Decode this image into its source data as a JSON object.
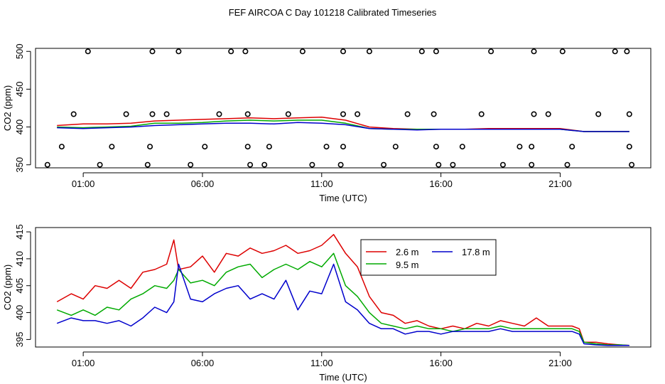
{
  "figure_title": "FEF AIRCOA C  Day 101218  Calibrated Timeseries",
  "colors": {
    "s1": "#dd0000",
    "s2": "#00aa00",
    "s3": "#0000cc",
    "axis": "#000000"
  },
  "chart_data": [
    {
      "type": "scatter+line",
      "title": "",
      "xlabel": "Time (UTC)",
      "ylabel": "CO2 (ppm)",
      "xlim": [
        -1.0,
        24.8
      ],
      "ylim": [
        346,
        504
      ],
      "x_ticks": [
        1,
        6,
        11,
        16,
        21
      ],
      "x_tick_labels": [
        "01:00",
        "06:00",
        "11:00",
        "16:00",
        "21:00"
      ],
      "y_ticks": [
        350,
        400,
        450,
        500
      ],
      "y_tick_labels": [
        "350",
        "400",
        "450",
        "500"
      ],
      "markers": {
        "style": "open-circle",
        "x": [
          1.2,
          3.9,
          5.0,
          7.2,
          7.8,
          10.2,
          11.9,
          13.0,
          15.2,
          15.8,
          18.1,
          19.9,
          21.1,
          23.3,
          23.8,
          0.6,
          2.8,
          3.9,
          4.5,
          6.7,
          7.9,
          9.6,
          11.9,
          12.5,
          14.6,
          15.7,
          17.7,
          19.9,
          20.5,
          22.6,
          23.9,
          0.1,
          2.2,
          3.8,
          6.1,
          7.9,
          8.8,
          11.2,
          11.9,
          14.1,
          15.8,
          16.9,
          19.3,
          19.8,
          21.5,
          23.9,
          -0.5,
          1.7,
          3.7,
          5.5,
          8.0,
          8.6,
          10.6,
          11.8,
          13.6,
          15.9,
          16.5,
          18.6,
          19.8,
          21.3,
          24.0
        ],
        "y": [
          500,
          500,
          500,
          500,
          500,
          500,
          500,
          500,
          500,
          500,
          500,
          500,
          500,
          500,
          500,
          417,
          417,
          417,
          417,
          417,
          417,
          417,
          417,
          417,
          417,
          417,
          417,
          417,
          417,
          417,
          417,
          374,
          374,
          374,
          374,
          374,
          374,
          374,
          374,
          374,
          374,
          374,
          374,
          374,
          374,
          374,
          350,
          350,
          350,
          350,
          350,
          350,
          350,
          350,
          350,
          350,
          350,
          350,
          350,
          350,
          350
        ]
      },
      "series": [
        {
          "name": "2.6 m",
          "x": [
            -0.1,
            1.0,
            2.0,
            3.0,
            4.0,
            5.0,
            6.0,
            7.0,
            8.0,
            9.0,
            10.0,
            11.0,
            12.0,
            13.0,
            14.0,
            15.0,
            16.0,
            17.0,
            18.0,
            19.0,
            20.0,
            21.0,
            22.0,
            23.0,
            23.9
          ],
          "y": [
            402,
            404,
            404,
            405,
            408,
            409,
            410,
            411,
            412,
            411,
            412,
            413,
            409,
            400,
            398,
            397,
            397,
            397,
            398,
            398,
            398,
            398,
            394,
            394,
            394
          ]
        },
        {
          "name": "9.5 m",
          "x": [
            -0.1,
            1.0,
            2.0,
            3.0,
            4.0,
            5.0,
            6.0,
            7.0,
            8.0,
            9.0,
            10.0,
            11.0,
            12.0,
            13.0,
            14.0,
            15.0,
            16.0,
            17.0,
            18.0,
            19.0,
            20.0,
            21.0,
            22.0,
            23.0,
            23.9
          ],
          "y": [
            400,
            399,
            400,
            401,
            405,
            405,
            406,
            408,
            409,
            408,
            409,
            409,
            405,
            398,
            397,
            397,
            397,
            397,
            397,
            397,
            397,
            397,
            394,
            394,
            394
          ]
        },
        {
          "name": "17.8 m",
          "x": [
            -0.1,
            1.0,
            2.0,
            3.0,
            4.0,
            5.0,
            6.0,
            7.0,
            8.0,
            9.0,
            10.0,
            11.0,
            12.0,
            13.0,
            14.0,
            15.0,
            16.0,
            17.0,
            18.0,
            19.0,
            20.0,
            21.0,
            22.0,
            23.0,
            23.9
          ],
          "y": [
            399,
            398,
            399,
            400,
            402,
            403,
            404,
            405,
            405,
            404,
            406,
            405,
            403,
            398,
            397,
            396,
            397,
            397,
            397,
            397,
            397,
            397,
            394,
            394,
            394
          ]
        }
      ]
    },
    {
      "type": "line",
      "title": "",
      "xlabel": "Time (UTC)",
      "ylabel": "CO2 (ppm)",
      "xlim": [
        -1.0,
        24.8
      ],
      "ylim": [
        393.6,
        415.8
      ],
      "x_ticks": [
        1,
        6,
        11,
        16,
        21
      ],
      "x_tick_labels": [
        "01:00",
        "06:00",
        "11:00",
        "16:00",
        "21:00"
      ],
      "y_ticks": [
        395,
        400,
        405,
        410,
        415
      ],
      "y_tick_labels": [
        "395",
        "400",
        "405",
        "410",
        "415"
      ],
      "legend": {
        "placement": "top-right",
        "entries": [
          {
            "label": "2.6 m",
            "series": 0
          },
          {
            "label": "9.5 m",
            "series": 1
          },
          {
            "label": "17.8 m",
            "series": 2
          }
        ]
      },
      "series": [
        {
          "name": "2.6 m",
          "x": [
            -0.1,
            0.5,
            1.0,
            1.5,
            2.0,
            2.5,
            3.0,
            3.5,
            4.0,
            4.5,
            4.8,
            5.0,
            5.5,
            6.0,
            6.5,
            7.0,
            7.5,
            8.0,
            8.5,
            9.0,
            9.5,
            10.0,
            10.5,
            11.0,
            11.5,
            12.0,
            12.5,
            13.0,
            13.5,
            14.0,
            14.5,
            15.0,
            15.5,
            16.0,
            16.5,
            17.0,
            17.5,
            18.0,
            18.5,
            19.0,
            19.5,
            20.0,
            20.5,
            21.0,
            21.5,
            21.8,
            22.0,
            22.5,
            23.0,
            23.5,
            23.9
          ],
          "y": [
            402.0,
            403.5,
            402.5,
            405.0,
            404.5,
            406.0,
            404.5,
            407.5,
            408.0,
            409.0,
            413.5,
            408.0,
            408.5,
            410.5,
            407.5,
            411.0,
            410.5,
            412.0,
            411.0,
            411.5,
            412.5,
            411.0,
            411.5,
            412.5,
            414.5,
            411.0,
            408.5,
            403.0,
            400.0,
            399.5,
            398.0,
            398.5,
            397.5,
            397.0,
            397.5,
            397.0,
            398.0,
            397.5,
            398.5,
            398.0,
            397.5,
            399.0,
            397.5,
            397.5,
            397.5,
            397.0,
            394.5,
            394.5,
            394.2,
            394.0,
            393.9
          ]
        },
        {
          "name": "9.5 m",
          "x": [
            -0.1,
            0.5,
            1.0,
            1.5,
            2.0,
            2.5,
            3.0,
            3.5,
            4.0,
            4.5,
            4.8,
            5.0,
            5.5,
            6.0,
            6.5,
            7.0,
            7.5,
            8.0,
            8.5,
            9.0,
            9.5,
            10.0,
            10.5,
            11.0,
            11.5,
            12.0,
            12.5,
            13.0,
            13.5,
            14.0,
            14.5,
            15.0,
            15.5,
            16.0,
            16.5,
            17.0,
            17.5,
            18.0,
            18.5,
            19.0,
            19.5,
            20.0,
            20.5,
            21.0,
            21.5,
            21.8,
            22.0,
            22.5,
            23.0,
            23.5,
            23.9
          ],
          "y": [
            400.5,
            399.5,
            400.5,
            399.5,
            401.0,
            400.5,
            402.5,
            403.5,
            405.0,
            404.5,
            406.0,
            408.0,
            405.5,
            406.0,
            405.0,
            407.5,
            408.5,
            409.0,
            406.5,
            408.0,
            409.0,
            408.0,
            409.5,
            408.5,
            411.0,
            405.0,
            403.0,
            400.0,
            398.0,
            397.5,
            397.0,
            397.5,
            397.0,
            397.0,
            396.5,
            397.0,
            397.0,
            397.0,
            397.5,
            397.0,
            397.0,
            397.0,
            397.0,
            397.0,
            397.0,
            396.5,
            394.5,
            394.2,
            394.0,
            394.0,
            393.9
          ]
        },
        {
          "name": "17.8 m",
          "x": [
            -0.1,
            0.5,
            1.0,
            1.5,
            2.0,
            2.5,
            3.0,
            3.5,
            4.0,
            4.5,
            4.8,
            5.0,
            5.5,
            6.0,
            6.5,
            7.0,
            7.5,
            8.0,
            8.5,
            9.0,
            9.5,
            10.0,
            10.5,
            11.0,
            11.5,
            12.0,
            12.5,
            13.0,
            13.5,
            14.0,
            14.5,
            15.0,
            15.5,
            16.0,
            16.5,
            17.0,
            17.5,
            18.0,
            18.5,
            19.0,
            19.5,
            20.0,
            20.5,
            21.0,
            21.5,
            21.8,
            22.0,
            22.5,
            23.0,
            23.5,
            23.9
          ],
          "y": [
            398.0,
            399.0,
            398.5,
            398.5,
            398.0,
            398.5,
            397.5,
            399.0,
            401.0,
            400.0,
            402.0,
            409.0,
            402.5,
            402.0,
            403.5,
            404.5,
            405.0,
            402.5,
            403.5,
            402.5,
            406.0,
            400.5,
            404.0,
            403.5,
            409.0,
            402.0,
            400.5,
            398.0,
            397.0,
            397.0,
            396.0,
            396.5,
            396.5,
            396.0,
            396.5,
            396.5,
            396.5,
            396.5,
            397.0,
            396.5,
            396.5,
            396.5,
            396.5,
            396.5,
            396.5,
            396.0,
            394.2,
            394.0,
            393.9,
            393.9,
            393.9
          ]
        }
      ]
    }
  ]
}
